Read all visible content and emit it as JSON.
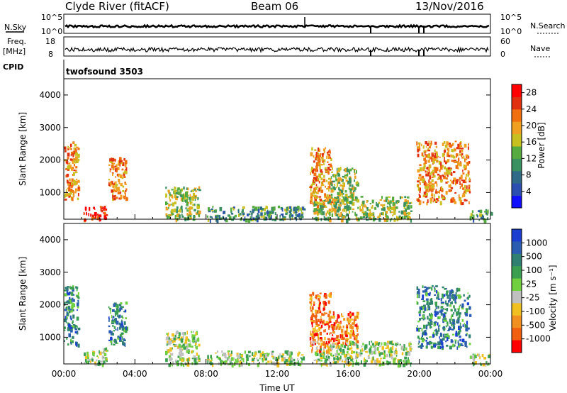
{
  "header": {
    "station": "Clyde River (fitACF)",
    "beam": "Beam 06",
    "date": "13/Nov/2016"
  },
  "top_panels": {
    "nsky_label": "N.Sky",
    "nsky_ticks": [
      "10^5",
      "10^0"
    ],
    "nsearch_label": "N.Search",
    "nsearch_ticks": [
      "10^5",
      "10^0"
    ],
    "freq_label": "Freq.",
    "freq_unit": "[MHz]",
    "freq_ticks": [
      "18",
      "8"
    ],
    "nave_label": "Nave",
    "nave_ticks": [
      "60",
      "0"
    ],
    "cpid_label": "CPID",
    "cpid_value": "twofsound 3503"
  },
  "chart_data": [
    {
      "type": "heatmap",
      "id": "power",
      "ylabel": "Slant Range [km]",
      "xlabel": "",
      "yticks": [
        "1000",
        "2000",
        "3000",
        "4000"
      ],
      "ylim": [
        180,
        4500
      ],
      "xlim": [
        0,
        24
      ],
      "colorbar": {
        "label": "Power [dB]",
        "ticks": [
          "4",
          "8",
          "12",
          "16",
          "20",
          "24",
          "28"
        ],
        "range": [
          0,
          30
        ],
        "colors": [
          "#1010ff",
          "#2a4fb0",
          "#2f6a88",
          "#3a9060",
          "#55aa40",
          "#c8c020",
          "#f0a020",
          "#f07010",
          "#e03010",
          "#ff0000"
        ]
      },
      "blobs": [
        {
          "t0": 0.0,
          "t1": 0.8,
          "r0": 800,
          "r1": 2600,
          "level": "high"
        },
        {
          "t0": 1.1,
          "t1": 2.4,
          "r0": 180,
          "r1": 600,
          "level": "max"
        },
        {
          "t0": 2.5,
          "t1": 3.5,
          "r0": 800,
          "r1": 2100,
          "level": "high"
        },
        {
          "t0": 5.7,
          "t1": 7.6,
          "r0": 180,
          "r1": 1200,
          "level": "mid"
        },
        {
          "t0": 8.0,
          "t1": 13.5,
          "r0": 180,
          "r1": 600,
          "level": "low"
        },
        {
          "t0": 13.8,
          "t1": 15.0,
          "r0": 600,
          "r1": 2400,
          "level": "high"
        },
        {
          "t0": 15.0,
          "t1": 16.5,
          "r0": 800,
          "r1": 1800,
          "level": "mid"
        },
        {
          "t0": 14.0,
          "t1": 19.5,
          "r0": 180,
          "r1": 900,
          "level": "mid"
        },
        {
          "t0": 19.8,
          "t1": 22.8,
          "r0": 700,
          "r1": 2600,
          "level": "high"
        },
        {
          "t0": 22.8,
          "t1": 24.0,
          "r0": 180,
          "r1": 500,
          "level": "low"
        }
      ]
    },
    {
      "type": "heatmap",
      "id": "velocity",
      "ylabel": "Slant Range [km]",
      "xlabel": "Time UT",
      "yticks": [
        "1000",
        "2000",
        "3000",
        "4000"
      ],
      "xticks": [
        "00:00",
        "04:00",
        "08:00",
        "12:00",
        "16:00",
        "20:00",
        "00:00"
      ],
      "ylim": [
        180,
        4500
      ],
      "xlim": [
        0,
        24
      ],
      "colorbar": {
        "label": "Velocity [m s⁻¹]",
        "ticks": [
          "1000",
          "500",
          "100",
          "25",
          "-25",
          "-100",
          "-500",
          "-1000"
        ],
        "colors": [
          "#1a3fd0",
          "#2a5cb0",
          "#2f8070",
          "#3aa050",
          "#70d040",
          "#c0c0c0",
          "#f0c020",
          "#f09020",
          "#f06010",
          "#ff0000"
        ]
      },
      "blobs": [
        {
          "t0": 0.0,
          "t1": 0.8,
          "r0": 800,
          "r1": 2600,
          "level": "pos"
        },
        {
          "t0": 1.1,
          "t1": 2.4,
          "r0": 180,
          "r1": 700,
          "level": "weak"
        },
        {
          "t0": 2.5,
          "t1": 3.5,
          "r0": 800,
          "r1": 2100,
          "level": "pos"
        },
        {
          "t0": 5.7,
          "t1": 7.6,
          "r0": 180,
          "r1": 1200,
          "level": "weak"
        },
        {
          "t0": 8.0,
          "t1": 13.5,
          "r0": 180,
          "r1": 600,
          "level": "weak"
        },
        {
          "t0": 13.8,
          "t1": 15.0,
          "r0": 600,
          "r1": 2400,
          "level": "neg"
        },
        {
          "t0": 15.0,
          "t1": 16.5,
          "r0": 800,
          "r1": 1800,
          "level": "neg"
        },
        {
          "t0": 14.0,
          "t1": 19.5,
          "r0": 180,
          "r1": 900,
          "level": "weak"
        },
        {
          "t0": 19.8,
          "t1": 22.8,
          "r0": 700,
          "r1": 2600,
          "level": "pos"
        },
        {
          "t0": 22.8,
          "t1": 24.0,
          "r0": 180,
          "r1": 500,
          "level": "weak"
        }
      ]
    }
  ]
}
